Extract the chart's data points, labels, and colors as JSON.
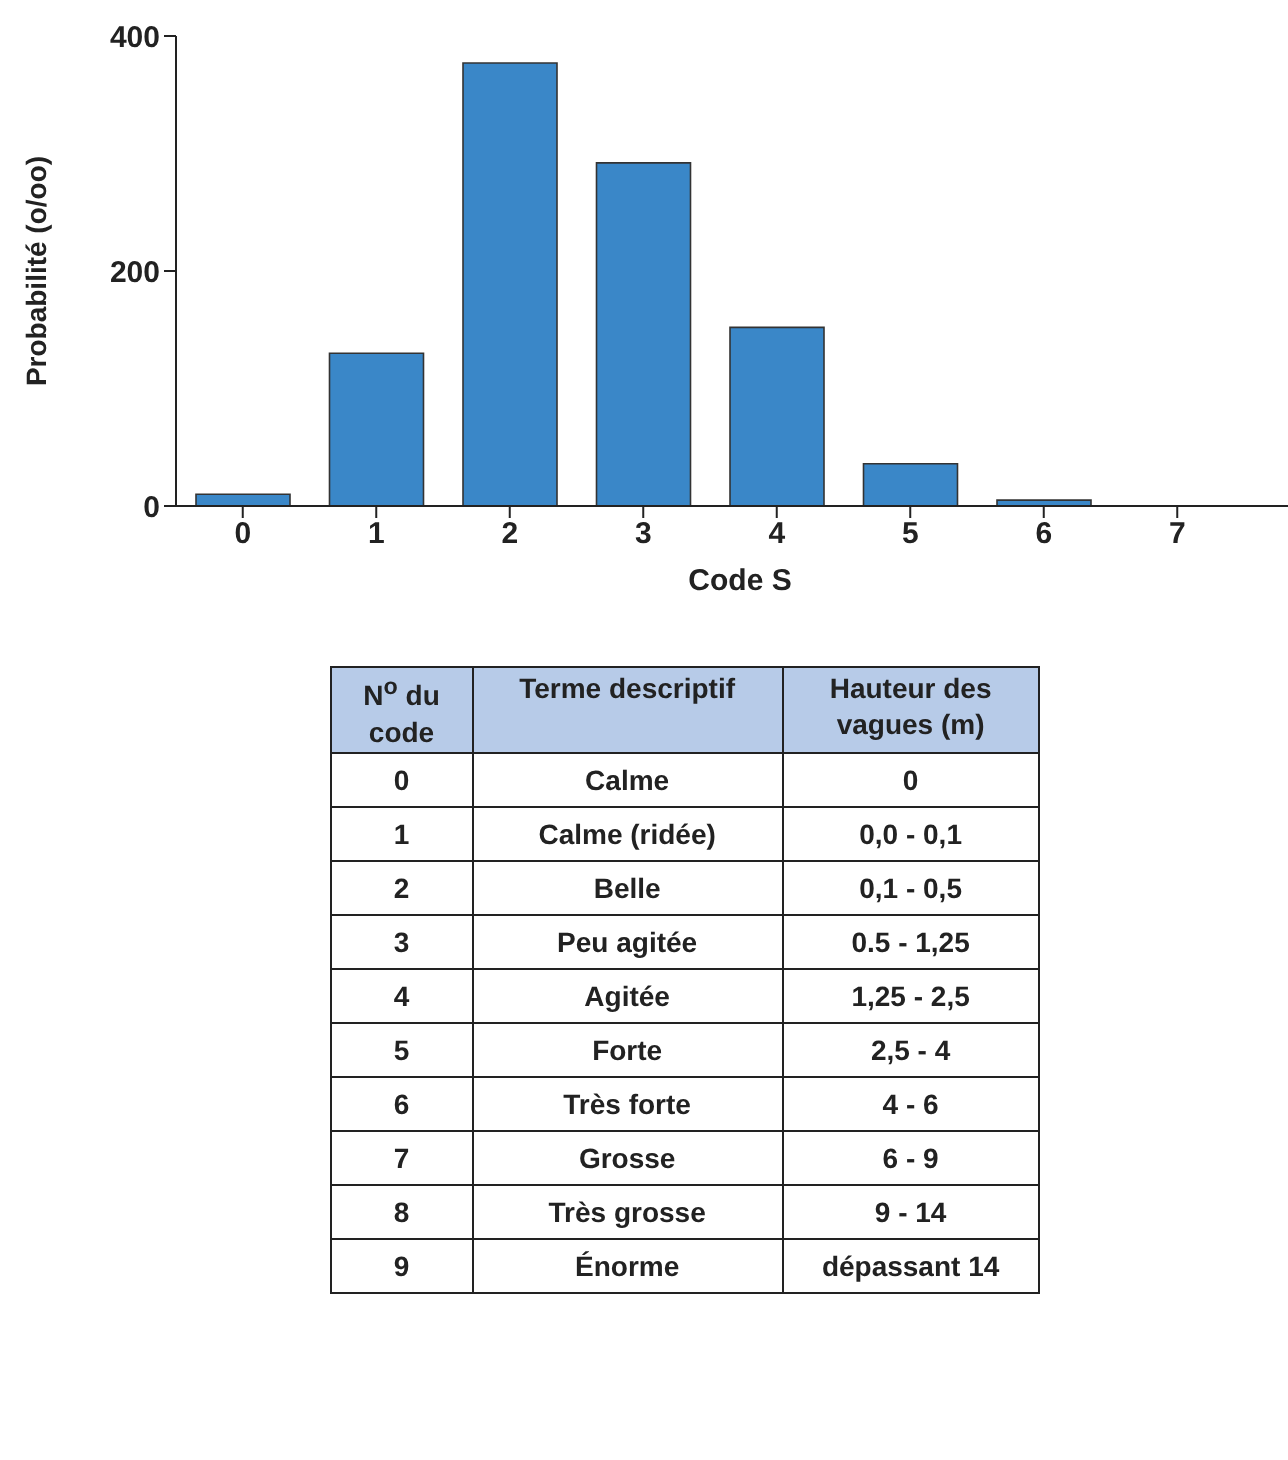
{
  "chart_data": {
    "type": "bar",
    "xlabel": "Code S",
    "ylabel": "Probabilité (o/oo)",
    "categories": [
      "0",
      "1",
      "2",
      "3",
      "4",
      "5",
      "6",
      "7"
    ],
    "values": [
      10,
      130,
      377,
      292,
      152,
      36,
      5,
      0
    ],
    "color": "#3a87c8",
    "ylim": [
      0,
      400
    ],
    "yticks": [
      0,
      200,
      400
    ],
    "grid": false,
    "legend": false,
    "annotations": [
      "N$^{o}$ du code",
      "Terme descriptif",
      "Hauteur des vagues (m)",
      "0",
      "Calme",
      "0",
      "1",
      "Calme (ridée)",
      "0,0 - 0,1",
      "2",
      "Belle",
      "0,1 - 0,5",
      "3",
      "Peu agitée",
      "0.5 - 1,25",
      "4",
      "Agitée",
      "1,25 - 2,5",
      "5",
      "Forte",
      "2,5 - 4",
      "6",
      "Très forte",
      "4 - 6",
      "7",
      "Grosse",
      "6 - 9",
      "8",
      "Très grosse",
      "9 - 14",
      "9",
      "Énorme",
      "dépassant 14"
    ]
  }
}
